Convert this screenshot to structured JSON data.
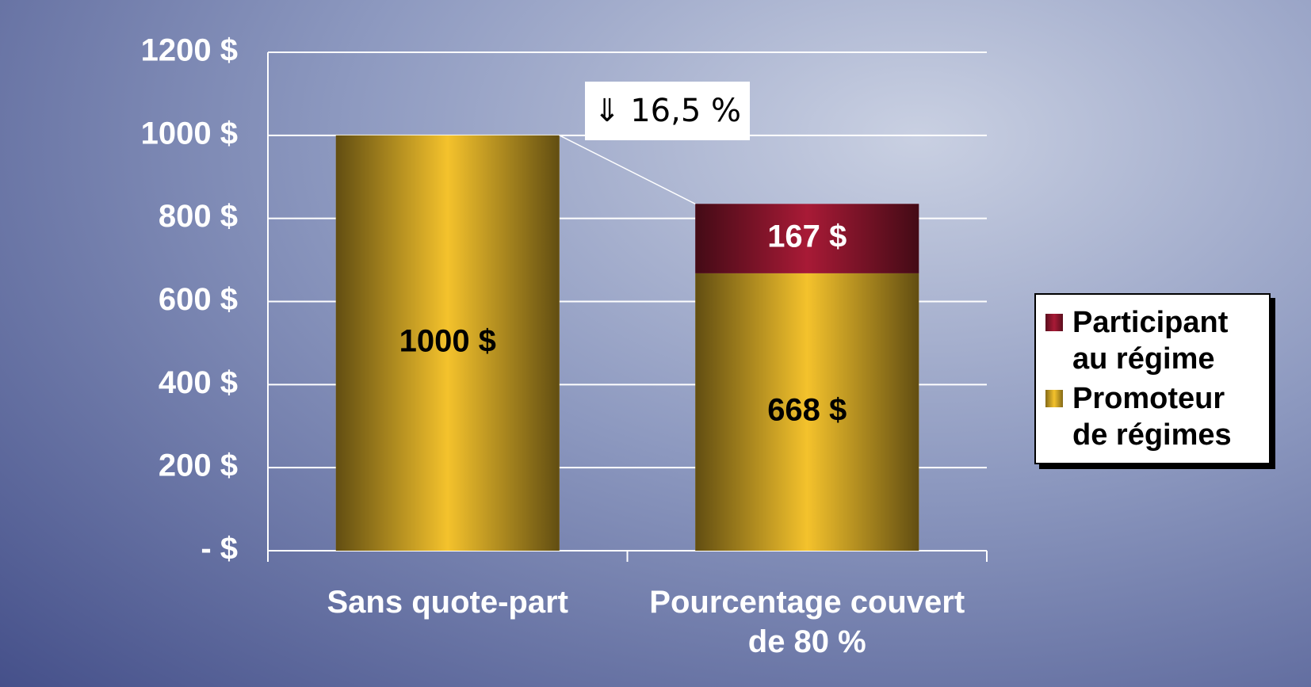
{
  "chart_data": {
    "type": "stacked_bar",
    "categories": [
      "Sans quote-part",
      "Pourcentage couvert de 80 %"
    ],
    "series": [
      {
        "name": "Promoteur de régimes",
        "color": "#f4c22c",
        "values": [
          1000,
          668
        ],
        "value_labels": [
          "1000 $",
          "668 $"
        ]
      },
      {
        "name": "Participant au régime",
        "color": "#a81a36",
        "values": [
          null,
          167
        ],
        "value_labels": [
          null,
          "167 $"
        ]
      }
    ],
    "ylim": [
      0,
      1200
    ],
    "yticks": [
      {
        "value": 0,
        "label": "-  $"
      },
      {
        "value": 200,
        "label": "200  $"
      },
      {
        "value": 400,
        "label": "400  $"
      },
      {
        "value": 600,
        "label": "600  $"
      },
      {
        "value": 800,
        "label": "800  $"
      },
      {
        "value": 1000,
        "label": "1000  $"
      },
      {
        "value": 1200,
        "label": "1200  $"
      }
    ],
    "grid": true,
    "legend": "right",
    "annotations": [
      "⇓ 16,5 %"
    ]
  }
}
